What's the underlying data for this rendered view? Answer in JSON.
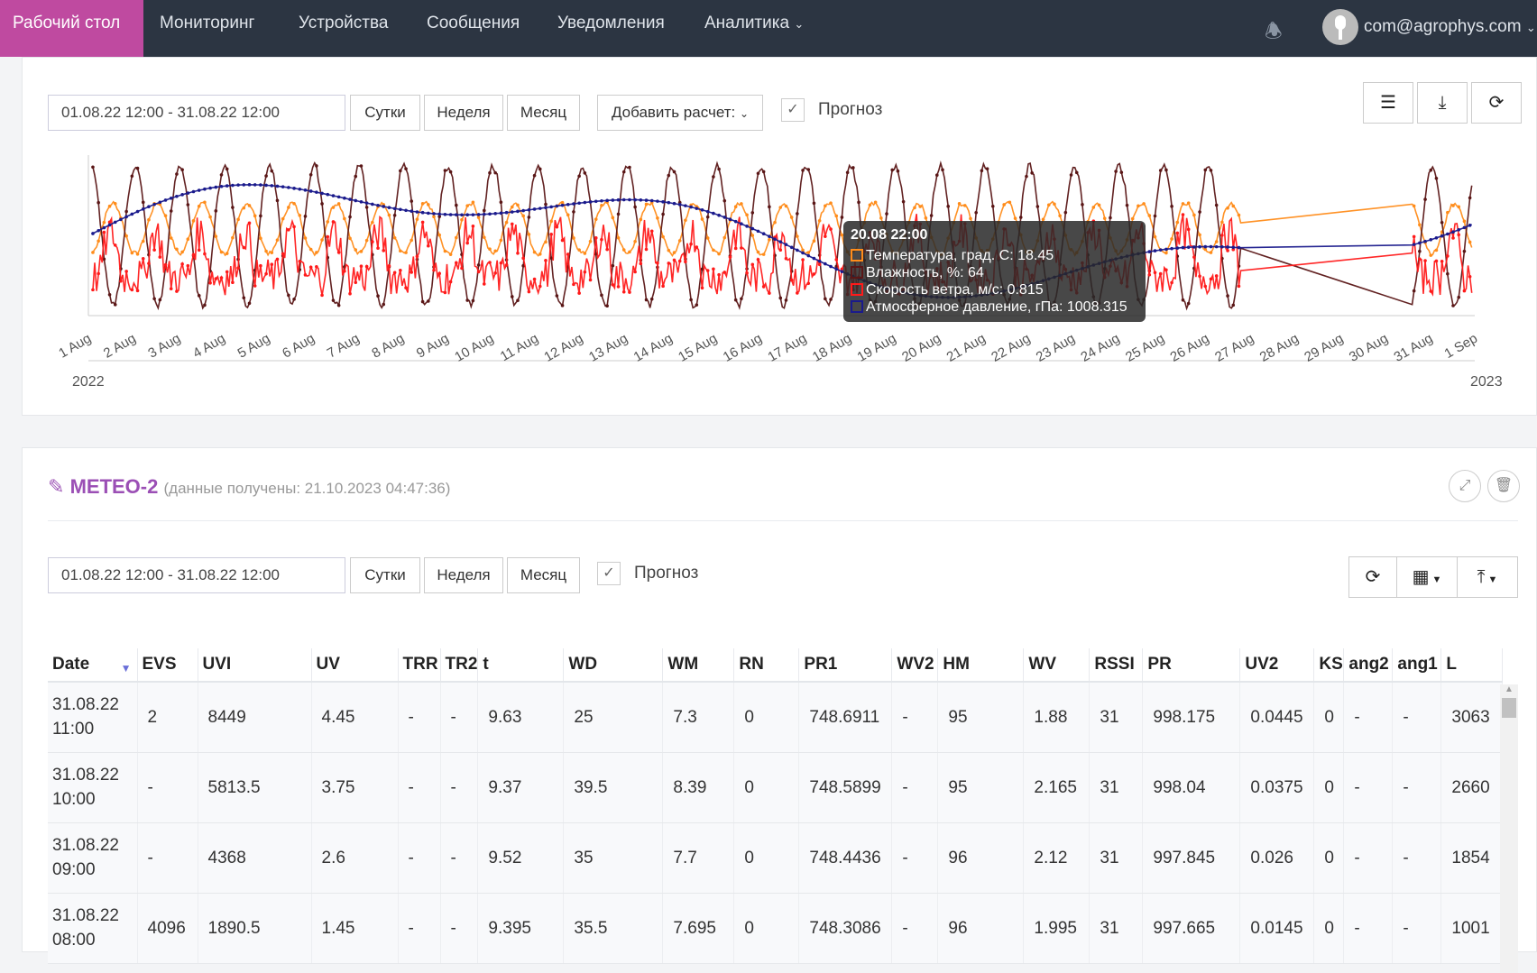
{
  "nav": {
    "items": [
      "Рабочий стол",
      "Мониторинг",
      "Устройства",
      "Сообщения",
      "Уведомления",
      "Аналитика"
    ],
    "user": "com@agrophys.com"
  },
  "chart_card": {
    "date_range": "01.08.22 12:00 - 31.08.22 12:00",
    "day": "Сутки",
    "week": "Неделя",
    "month": "Месяц",
    "add_calc": "Добавить расчет:",
    "forecast": "Прогноз"
  },
  "chart_data": {
    "type": "line",
    "x_ticks": [
      "1 Aug",
      "2 Aug",
      "3 Aug",
      "4 Aug",
      "5 Aug",
      "6 Aug",
      "7 Aug",
      "8 Aug",
      "9 Aug",
      "10 Aug",
      "11 Aug",
      "12 Aug",
      "13 Aug",
      "14 Aug",
      "15 Aug",
      "16 Aug",
      "17 Aug",
      "18 Aug",
      "19 Aug",
      "20 Aug",
      "21 Aug",
      "22 Aug",
      "23 Aug",
      "24 Aug",
      "25 Aug",
      "26 Aug",
      "27 Aug",
      "28 Aug",
      "29 Aug",
      "30 Aug",
      "31 Aug",
      "1 Sep"
    ],
    "navigator_labels": [
      "2022",
      "2023"
    ],
    "series": [
      {
        "name": "Температура, град. С",
        "color": "#ff8c1a"
      },
      {
        "name": "Влажность, %",
        "color": "#5a1616"
      },
      {
        "name": "Скорость ветра, м/с",
        "color": "#ff1a1a"
      },
      {
        "name": "Атмосферное давление, гПа",
        "color": "#1a1a8c"
      }
    ],
    "tooltip": {
      "title": "20.08 22:00",
      "values": [
        "18.45",
        "64",
        "0.815",
        "1008.315"
      ]
    }
  },
  "table_card": {
    "title": "METEO-2",
    "subtitle": "(данные получены: 21.10.2023 04:47:36)",
    "date_range": "01.08.22 12:00 - 31.08.22 12:00",
    "day": "Сутки",
    "week": "Неделя",
    "month": "Месяц",
    "forecast": "Прогноз"
  },
  "table": {
    "columns": [
      "Date",
      "EVS",
      "UVI",
      "UV",
      "TRR",
      "TR2",
      "t",
      "WD",
      "WM",
      "RN",
      "PR1",
      "WV2",
      "HM",
      "WV",
      "RSSI",
      "PR",
      "UV2",
      "KS",
      "ang2",
      "ang1",
      "L"
    ],
    "rows": [
      [
        [
          "31.08.22",
          "11:00"
        ],
        "2",
        "8449",
        "4.45",
        "-",
        "-",
        "9.63",
        "25",
        "7.3",
        "0",
        "748.6911",
        "-",
        "95",
        "1.88",
        "31",
        "998.175",
        "0.0445",
        "0",
        "-",
        "-",
        "3063"
      ],
      [
        [
          "31.08.22",
          "10:00"
        ],
        "-",
        "5813.5",
        "3.75",
        "-",
        "-",
        "9.37",
        "39.5",
        "8.39",
        "0",
        "748.5899",
        "-",
        "95",
        "2.165",
        "31",
        "998.04",
        "0.0375",
        "0",
        "-",
        "-",
        "2660"
      ],
      [
        [
          "31.08.22",
          "09:00"
        ],
        "-",
        "4368",
        "2.6",
        "-",
        "-",
        "9.52",
        "35",
        "7.7",
        "0",
        "748.4436",
        "-",
        "96",
        "2.12",
        "31",
        "997.845",
        "0.026",
        "0",
        "-",
        "-",
        "1854"
      ],
      [
        [
          "31.08.22",
          "08:00"
        ],
        "4096",
        "1890.5",
        "1.45",
        "-",
        "-",
        "9.395",
        "35.5",
        "7.695",
        "0",
        "748.3086",
        "-",
        "96",
        "1.995",
        "31",
        "997.665",
        "0.0145",
        "0",
        "-",
        "-",
        "1001"
      ]
    ]
  }
}
